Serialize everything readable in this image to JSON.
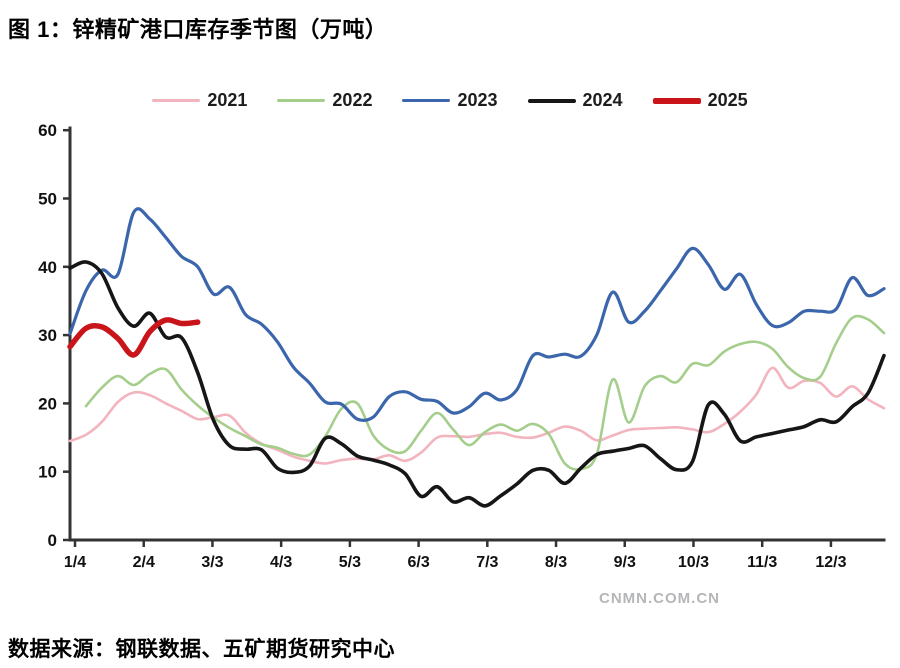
{
  "title": "图 1：锌精矿港口库存季节图（万吨）",
  "source": "数据来源：钢联数据、五矿期货研究中心",
  "watermark": "CNMN.COM.CN",
  "chart_data": {
    "type": "line",
    "title": "锌精矿港口库存季节图（万吨）",
    "legend_position": "top",
    "grid": false,
    "ylim": [
      0,
      60
    ],
    "y_ticks": [
      0,
      10,
      20,
      30,
      40,
      50,
      60
    ],
    "x_tick_labels": [
      "1/4",
      "2/4",
      "3/3",
      "4/3",
      "5/3",
      "6/3",
      "7/3",
      "8/3",
      "9/3",
      "10/3",
      "11/3",
      "12/3"
    ],
    "x_unit": "week-of-year, 52 points",
    "series": [
      {
        "name": "2021",
        "color": "#F2B4BE",
        "line_width": 2.6,
        "values": [
          14.5,
          15.4,
          17.3,
          20.2,
          21.6,
          21.2,
          20.0,
          18.9,
          17.7,
          18.0,
          18.2,
          15.7,
          14.1,
          13.2,
          12.2,
          11.6,
          11.2,
          11.7,
          11.9,
          11.8,
          12.4,
          11.6,
          12.8,
          15.0,
          15.2,
          15.1,
          15.5,
          15.7,
          15.1,
          15.0,
          15.7,
          16.6,
          16.0,
          14.6,
          15.3,
          16.1,
          16.3,
          16.4,
          16.5,
          16.2,
          15.8,
          17.0,
          18.8,
          21.3,
          25.2,
          22.3,
          23.3,
          23.0,
          21.0,
          22.5,
          20.6,
          19.3
        ]
      },
      {
        "name": "2022",
        "color": "#A5CE8D",
        "line_width": 2.6,
        "values": [
          null,
          19.6,
          22.3,
          24.0,
          22.7,
          24.3,
          25.0,
          22.0,
          19.7,
          17.9,
          16.4,
          15.2,
          14.0,
          13.5,
          12.6,
          12.5,
          15.2,
          19.2,
          20.0,
          15.3,
          13.2,
          13.0,
          16.0,
          18.6,
          16.2,
          13.9,
          15.8,
          16.9,
          16.0,
          17.0,
          15.5,
          11.2,
          10.4,
          12.5,
          23.5,
          17.2,
          22.5,
          24.0,
          23.1,
          25.8,
          25.6,
          27.6,
          28.7,
          29.0,
          28.0,
          25.3,
          23.7,
          23.9,
          28.8,
          32.5,
          32.3,
          30.3
        ]
      },
      {
        "name": "2023",
        "color": "#3B66AC",
        "line_width": 3.2,
        "values": [
          30.2,
          36.5,
          39.5,
          38.9,
          48.0,
          47.0,
          44.3,
          41.5,
          40.0,
          36.0,
          37.0,
          33.0,
          31.6,
          29.0,
          25.3,
          23.0,
          20.2,
          19.9,
          17.7,
          18.0,
          21.0,
          21.7,
          20.6,
          20.3,
          18.6,
          19.5,
          21.5,
          20.5,
          22.0,
          27.0,
          26.8,
          27.2,
          26.9,
          30.0,
          36.3,
          31.9,
          33.5,
          36.5,
          39.7,
          42.7,
          40.3,
          36.7,
          38.9,
          34.5,
          31.4,
          31.8,
          33.5,
          33.5,
          33.8,
          38.4,
          35.8,
          36.8
        ]
      },
      {
        "name": "2024",
        "color": "#161616",
        "line_width": 3.6,
        "values": [
          39.8,
          40.7,
          39.0,
          34.0,
          31.3,
          33.2,
          29.7,
          29.6,
          24.5,
          17.5,
          13.8,
          13.3,
          13.2,
          10.5,
          9.9,
          10.8,
          14.9,
          14.1,
          12.3,
          11.7,
          11.0,
          9.7,
          6.4,
          7.8,
          5.6,
          6.2,
          5.0,
          6.5,
          8.2,
          10.2,
          10.2,
          8.3,
          10.5,
          12.5,
          13.0,
          13.4,
          13.8,
          11.9,
          10.3,
          11.5,
          19.8,
          18.4,
          14.5,
          15.1,
          15.6,
          16.1,
          16.6,
          17.6,
          17.3,
          19.5,
          21.5,
          27.0
        ]
      },
      {
        "name": "2025",
        "color": "#C9151A",
        "line_width": 5.5,
        "values": [
          28.3,
          31.0,
          31.2,
          29.5,
          27.1,
          30.5,
          32.2,
          31.7,
          31.9
        ]
      }
    ]
  }
}
